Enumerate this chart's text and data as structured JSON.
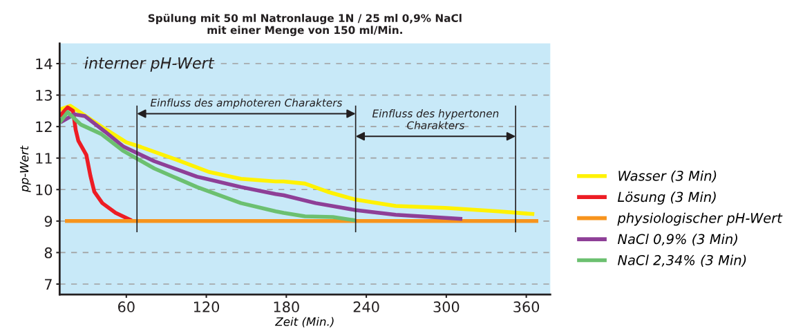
{
  "chart_data": {
    "type": "line",
    "title": "Spülung mit 50 ml Natronlauge 1N / 25 ml 0,9% NaCl\nmit einer Menge von 150 ml/Min.",
    "xlabel": "Zeit (Min.)",
    "ylabel": "pp-Wert",
    "xlim": [
      10,
      378
    ],
    "xticks": [
      60,
      120,
      180,
      240,
      300,
      360
    ],
    "ylim": [
      6.67,
      14.64
    ],
    "yticks": [
      7,
      8,
      9,
      10,
      11,
      12,
      13,
      14
    ],
    "grid": "y",
    "legend": "right",
    "line_style": "solid",
    "marker": "none",
    "series": [
      {
        "name": "Wasser (3 Min)",
        "color": "#fff200",
        "x": [
          10.5,
          18,
          45,
          60,
          71,
          97,
          122,
          146,
          172,
          178,
          194,
          211,
          232,
          262,
          299,
          339,
          366
        ],
        "values": [
          12.55,
          12.66,
          11.9,
          11.5,
          11.35,
          10.96,
          10.56,
          10.34,
          10.26,
          10.26,
          10.19,
          9.93,
          9.68,
          9.48,
          9.42,
          9.31,
          9.22
        ]
      },
      {
        "name": "Lösung (3 Min)",
        "color": "#ed1c24",
        "x": [
          10,
          16,
          20,
          22,
          24,
          30,
          33,
          36,
          42,
          52,
          64
        ],
        "values": [
          12.33,
          12.61,
          12.5,
          11.9,
          11.55,
          11.1,
          10.45,
          9.93,
          9.57,
          9.26,
          9.02
        ]
      },
      {
        "name": "physiologischer pH-Wert",
        "color": "#f7941d",
        "x": [
          14,
          369
        ],
        "values": [
          9,
          9
        ]
      },
      {
        "name": "NaCl 0,9% (3 Min)",
        "color": "#8e3f97",
        "x": [
          10.5,
          21,
          29,
          44,
          58,
          81,
          113,
          146,
          172,
          178,
          202,
          232,
          262,
          312
        ],
        "values": [
          12.13,
          12.39,
          12.33,
          11.84,
          11.36,
          10.9,
          10.41,
          10.08,
          9.86,
          9.82,
          9.57,
          9.35,
          9.2,
          9.07
        ]
      },
      {
        "name": "NaCl 2,34% (3 Min)",
        "color": "#6cc070",
        "x": [
          10,
          16,
          26,
          41,
          58,
          81,
          113,
          146,
          172,
          178,
          194,
          215,
          232
        ],
        "values": [
          12.13,
          12.46,
          12.06,
          11.77,
          11.22,
          10.67,
          10.08,
          9.57,
          9.31,
          9.26,
          9.15,
          9.13,
          9.02
        ]
      }
    ],
    "ref_lines": [
      {
        "axis": "x",
        "value": 68,
        "color": "#231f20"
      },
      {
        "axis": "x",
        "value": 232,
        "color": "#231f20"
      },
      {
        "axis": "x",
        "value": 352,
        "color": "#231f20"
      }
    ],
    "annotations": [
      "interner pH-Wert",
      "Einfluss des amphoteren Charakters",
      "Einfluss des hypertonen\nCharakters"
    ]
  }
}
